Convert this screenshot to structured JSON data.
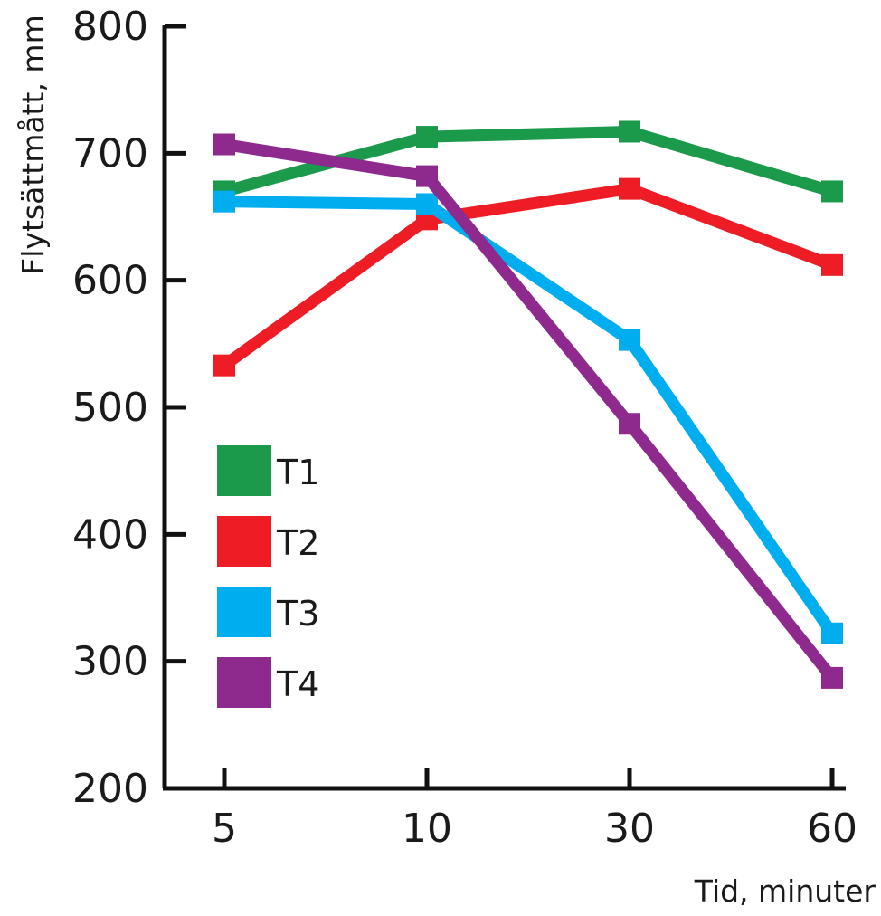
{
  "chart_data": {
    "type": "line",
    "title": "",
    "xlabel": "Tid, minuter",
    "ylabel": "Flytsättmått, mm",
    "categories": [
      "5",
      "10",
      "30",
      "60"
    ],
    "ylim": [
      200,
      800
    ],
    "yticks": [
      "200",
      "300",
      "400",
      "500",
      "600",
      "700",
      "800"
    ],
    "grid": false,
    "legend_position": "lower-left",
    "series": [
      {
        "name": "T1",
        "color": "#1a9a4a",
        "values": [
          670,
          713,
          717,
          670
        ]
      },
      {
        "name": "T2",
        "color": "#ee1c25",
        "values": [
          533,
          648,
          672,
          612
        ]
      },
      {
        "name": "T3",
        "color": "#00aeef",
        "values": [
          662,
          660,
          553,
          322
        ]
      },
      {
        "name": "T4",
        "color": "#8e2a8e",
        "values": [
          707,
          682,
          487,
          287
        ]
      }
    ]
  }
}
